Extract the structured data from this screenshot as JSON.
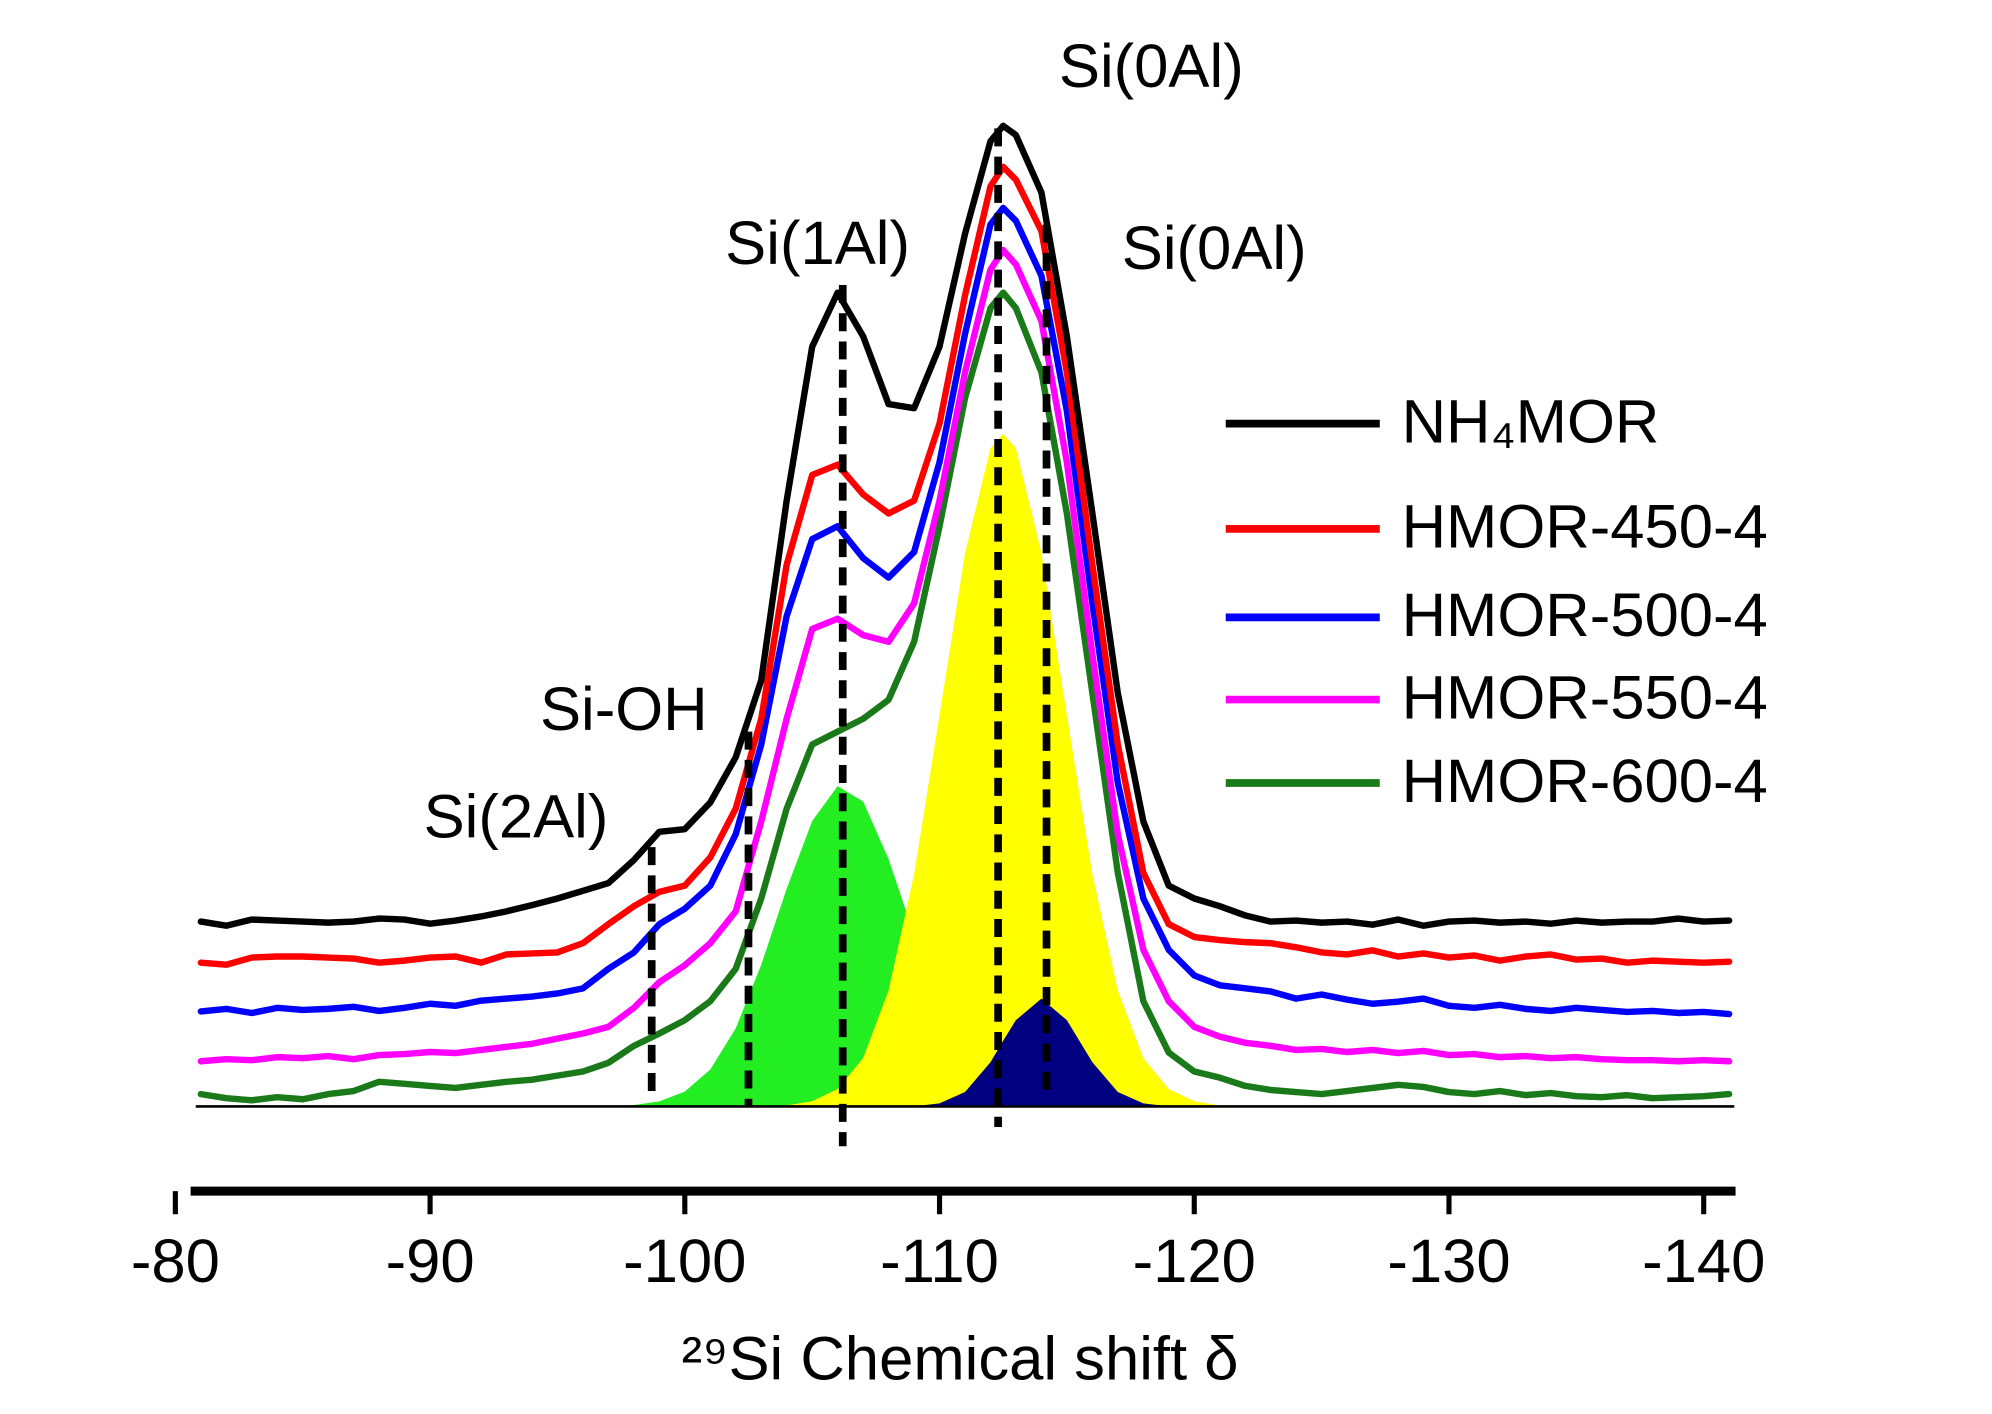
{
  "chart_data": {
    "type": "line",
    "x_label": "²⁹Si Chemical shift δ",
    "xlim": [
      -80.8,
      -141.2
    ],
    "xticks": [
      -80,
      -90,
      -100,
      -110,
      -120,
      -130,
      -140
    ],
    "ylim": [
      -8.25,
      100
    ],
    "annotations": [
      "Si(0Al)",
      "Si(1Al)",
      "Si(0Al)",
      "Si-OH",
      "Si(2Al)"
    ],
    "reference_lines": [
      -98.7,
      -102.5,
      -106.2,
      -112.3,
      -114.2
    ],
    "x": [
      -81,
      -82,
      -83,
      -84,
      -85,
      -86,
      -87,
      -88,
      -89,
      -90,
      -91,
      -92,
      -93,
      -94,
      -95,
      -96,
      -97,
      -98,
      -99,
      -100,
      -101,
      -102,
      -103,
      -104,
      -105,
      -106,
      -107,
      -108,
      -109,
      -110,
      -111,
      -112,
      -112.5,
      -113,
      -114,
      -115,
      -116,
      -117,
      -118,
      -119,
      -120,
      -121,
      -122,
      -123,
      -124,
      -125,
      -126,
      -127,
      -128,
      -129,
      -130,
      -131,
      -132,
      -133,
      -134,
      -135,
      -136,
      -137,
      -138,
      -139,
      -140,
      -141
    ],
    "series": [
      {
        "style": "area",
        "color": "#22ee22",
        "values": [
          0,
          0,
          0,
          0,
          0,
          0,
          0,
          0,
          0,
          0,
          0,
          0,
          0,
          0,
          0,
          0,
          0.04,
          0.14,
          0.49,
          1.44,
          3.6,
          7.6,
          13.8,
          21.2,
          27.8,
          31.2,
          29.7,
          24.1,
          16.7,
          9.8,
          4.9,
          2.1,
          1.3,
          0.8,
          0.24,
          0.06,
          0,
          0,
          0,
          0,
          0,
          0,
          0,
          0,
          0,
          0,
          0,
          0,
          0,
          0,
          0,
          0,
          0,
          0,
          0,
          0,
          0,
          0,
          0,
          0,
          0,
          0
        ]
      },
      {
        "style": "area",
        "color": "#ffff00",
        "values": [
          0,
          0,
          0,
          0,
          0,
          0,
          0,
          0,
          0,
          0,
          0,
          0,
          0,
          0,
          0,
          0,
          0,
          0,
          0,
          0,
          0,
          0,
          0,
          0.1,
          0.5,
          1.7,
          4.7,
          11.3,
          22.6,
          38.1,
          53.9,
          64.1,
          65.5,
          64.1,
          53.9,
          38.1,
          22.6,
          11.3,
          4.7,
          1.7,
          0.5,
          0.1,
          0,
          0,
          0,
          0,
          0,
          0,
          0,
          0,
          0,
          0,
          0,
          0,
          0,
          0,
          0,
          0,
          0,
          0,
          0,
          0
        ]
      },
      {
        "style": "area",
        "color": "#000080",
        "values": [
          0,
          0,
          0,
          0,
          0,
          0,
          0,
          0,
          0,
          0,
          0,
          0,
          0,
          0,
          0,
          0,
          0,
          0,
          0,
          0,
          0,
          0,
          0,
          0,
          0,
          0,
          0,
          0,
          0,
          0.3,
          1.4,
          4.3,
          6.4,
          8.4,
          10.5,
          8.4,
          4.3,
          1.4,
          0.3,
          0,
          0,
          0,
          0,
          0,
          0,
          0,
          0,
          0,
          0,
          0,
          0,
          0,
          0,
          0,
          0,
          0,
          0,
          0,
          0,
          0,
          0,
          0
        ]
      },
      {
        "name": "NH₄MOR",
        "color": "#000000",
        "values": [
          18,
          17.6,
          18.2,
          18.1,
          18,
          17.9,
          18,
          18.3,
          18.2,
          17.8,
          18.1,
          18.5,
          19,
          19.6,
          20.25,
          21,
          21.75,
          24,
          26.75,
          27,
          29.6,
          34,
          41.5,
          59,
          74,
          79.25,
          75,
          68.4,
          68,
          74,
          85,
          94,
          95.5,
          94.6,
          89,
          75,
          57.75,
          40.25,
          27.75,
          21.5,
          20.25,
          19.5,
          18.6,
          18,
          18.1,
          17.9,
          18,
          17.7,
          18.2,
          17.6,
          18,
          18.1,
          17.9,
          18,
          17.8,
          18.1,
          17.9,
          18,
          18,
          18.3,
          18,
          18.1
        ]
      },
      {
        "name": "HMOR-450-4",
        "color": "#ff0000",
        "values": [
          14,
          13.8,
          14.5,
          14.6,
          14.6,
          14.5,
          14.4,
          14,
          14.2,
          14.5,
          14.6,
          14,
          14.8,
          14.9,
          15,
          15.9,
          17.75,
          19.5,
          20.9,
          21.5,
          24.25,
          29,
          37.75,
          52.75,
          61.5,
          62.5,
          59.6,
          57.75,
          59,
          66.5,
          79,
          89.6,
          91.5,
          90.25,
          85.25,
          71.5,
          52.75,
          35.25,
          22.75,
          17.75,
          16.5,
          16.2,
          16,
          15.9,
          15.5,
          15,
          14.8,
          15.2,
          14.6,
          14.9,
          14.5,
          14.7,
          14.2,
          14.6,
          14.8,
          14.3,
          14.4,
          14,
          14.2,
          14.1,
          14,
          14.1
        ]
      },
      {
        "name": "HMOR-500-4",
        "color": "#0000ff",
        "values": [
          9.25,
          9.5,
          9.1,
          9.6,
          9.4,
          9.5,
          9.7,
          9.3,
          9.6,
          10,
          9.8,
          10.3,
          10.5,
          10.7,
          11,
          11.5,
          13.4,
          15,
          17.75,
          19.25,
          21.5,
          26.5,
          35.25,
          47.75,
          55.25,
          56.5,
          53.4,
          51.5,
          54,
          62.75,
          75.25,
          85.9,
          87.5,
          86.25,
          80.9,
          67.75,
          49,
          31.5,
          20.25,
          15.25,
          12.75,
          11.8,
          11.5,
          11.2,
          10.5,
          10.9,
          10.4,
          10,
          10.2,
          10.5,
          9.8,
          9.6,
          9.9,
          9.5,
          9.3,
          9.6,
          9.4,
          9.2,
          9.3,
          9.1,
          9.2,
          9
        ]
      },
      {
        "name": "HMOR-550-4",
        "color": "#ff00ff",
        "values": [
          4.4,
          4.6,
          4.5,
          4.8,
          4.7,
          4.9,
          4.6,
          5,
          5.1,
          5.3,
          5.2,
          5.5,
          5.8,
          6.1,
          6.6,
          7.1,
          7.75,
          9.6,
          12.1,
          13.75,
          15.9,
          19,
          27.75,
          37.75,
          46.5,
          47.5,
          45.9,
          45.25,
          49,
          59,
          71.5,
          81.5,
          83.4,
          82,
          76.5,
          62.75,
          44,
          26.5,
          15.25,
          10.25,
          7.75,
          6.8,
          6.2,
          5.9,
          5.5,
          5.6,
          5.3,
          5.5,
          5.2,
          5.4,
          5,
          5.1,
          4.8,
          4.9,
          4.7,
          4.8,
          4.6,
          4.5,
          4.5,
          4.4,
          4.5,
          4.4
        ]
      },
      {
        "name": "HMOR-600-4",
        "color": "#1a7a1a",
        "values": [
          1.2,
          0.8,
          0.6,
          0.9,
          0.7,
          1.2,
          1.5,
          2.4,
          2.2,
          2,
          1.8,
          2.1,
          2.4,
          2.6,
          3,
          3.4,
          4.25,
          5.9,
          7.1,
          8.4,
          10.25,
          13.4,
          20.25,
          29,
          35.25,
          36.5,
          37.75,
          39.6,
          45.25,
          56.5,
          69,
          77.75,
          79.25,
          77.75,
          71.5,
          57.75,
          40.25,
          22.75,
          10.25,
          5.25,
          3.4,
          2.8,
          2,
          1.6,
          1.4,
          1.2,
          1.5,
          1.8,
          2.1,
          1.9,
          1.4,
          1.2,
          1.5,
          1.1,
          1.3,
          1,
          0.9,
          1.1,
          0.8,
          0.9,
          1,
          1.2
        ]
      }
    ]
  }
}
